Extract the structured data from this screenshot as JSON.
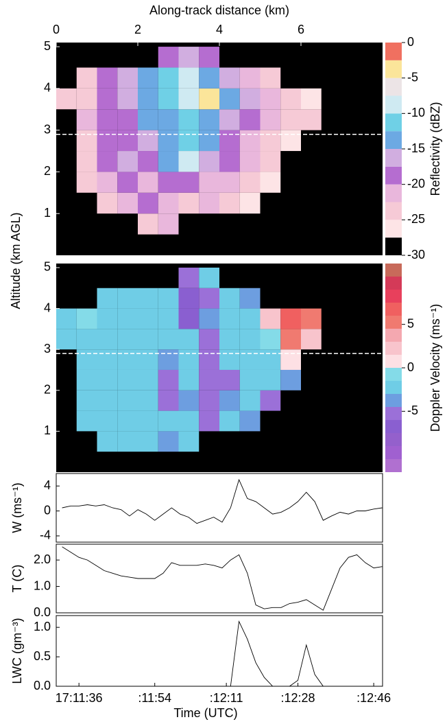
{
  "chart_data": [
    {
      "type": "heatmap",
      "xlabel": "Along-track distance (km)",
      "ylabel": "Altitude (km AGL)",
      "colorbar_label": "Reflectivity (dBZ)",
      "xlim": [
        0,
        8
      ],
      "xticks": [
        0,
        2,
        4,
        6
      ],
      "ylim": [
        0,
        5.1
      ],
      "yticks": [
        1,
        2,
        3,
        4,
        5
      ],
      "x_bins": [
        0,
        0.5,
        1,
        1.5,
        2,
        2.5,
        3,
        3.5,
        4,
        4.5,
        5,
        5.5,
        6,
        6.5,
        7,
        7.5,
        8
      ],
      "y_bins": [
        0,
        0.5,
        1,
        1.5,
        2,
        2.5,
        3,
        3.5,
        4,
        4.5,
        5
      ],
      "z": [
        [
          null,
          null,
          null,
          null,
          null,
          null,
          null,
          null,
          null,
          null,
          null,
          null,
          null,
          null,
          null,
          null
        ],
        [
          null,
          null,
          null,
          null,
          -24,
          -21,
          null,
          null,
          null,
          null,
          null,
          null,
          null,
          null,
          null,
          null
        ],
        [
          null,
          null,
          -25,
          -22,
          -20,
          -22,
          -24,
          -21,
          -23,
          -26,
          null,
          null,
          null,
          null,
          null,
          null
        ],
        [
          null,
          -25,
          -21,
          -19,
          -22,
          -20,
          -18,
          -21,
          -22,
          -24,
          -26,
          null,
          null,
          null,
          null,
          null
        ],
        [
          null,
          -25,
          -20,
          -17,
          -19,
          -15,
          -10,
          -17,
          -20,
          -22,
          -25,
          null,
          null,
          null,
          null,
          null
        ],
        [
          null,
          -23,
          -19,
          -20,
          -17,
          -14,
          -12,
          -15,
          -19,
          -21,
          -24,
          -27,
          null,
          null,
          null,
          null
        ],
        [
          null,
          -22,
          -19,
          -18,
          -15,
          -13,
          -12,
          -14,
          -16,
          -18,
          -21,
          -23,
          -25,
          null,
          null,
          null
        ],
        [
          -25,
          -23,
          -20,
          -16,
          -14,
          -12,
          -8,
          -4,
          -13,
          -17,
          -22,
          -24,
          -26,
          null,
          null,
          null
        ],
        [
          null,
          -24,
          -18,
          -16,
          -15,
          -11,
          -9,
          -13,
          -17,
          -22,
          -25,
          null,
          null,
          null,
          null,
          null
        ],
        [
          null,
          null,
          null,
          null,
          null,
          -18,
          -16,
          -20,
          null,
          null,
          null,
          null,
          null,
          null,
          null,
          null
        ]
      ],
      "levels": [
        -30,
        -27.5,
        -25,
        -22.5,
        -20,
        -17.5,
        -15,
        -12.5,
        -10,
        -7.5,
        -5,
        -2.5,
        0
      ],
      "colors": [
        "#000000",
        "#fde4e6",
        "#f6cad6",
        "#e9b7dc",
        "#b56dd0",
        "#d1aee0",
        "#6ca9e3",
        "#6fd0e6",
        "#cfeaf2",
        "#ece4e6",
        "#fbe59a",
        "#f07060"
      ],
      "cticks": [
        -30,
        -25,
        -20,
        -15,
        -10,
        -5,
        0
      ],
      "flight_altitude": 2.9
    },
    {
      "type": "heatmap",
      "colorbar_label": "Doppler Velocity (ms⁻¹)",
      "xlim": [
        0,
        8
      ],
      "ylim": [
        0,
        5.1
      ],
      "yticks": [
        1,
        2,
        3,
        4,
        5
      ],
      "x_bins": [
        0,
        0.5,
        1,
        1.5,
        2,
        2.5,
        3,
        3.5,
        4,
        4.5,
        5,
        5.5,
        6,
        6.5,
        7,
        7.5,
        8
      ],
      "y_bins": [
        0,
        0.5,
        1,
        1.5,
        2,
        2.5,
        3,
        3.5,
        4,
        4.5,
        5
      ],
      "z": [
        [
          null,
          null,
          null,
          null,
          null,
          null,
          null,
          null,
          null,
          null,
          null,
          null,
          null,
          null,
          null,
          null
        ],
        [
          null,
          null,
          -3,
          -2,
          -2,
          -4,
          -3,
          null,
          null,
          null,
          null,
          null,
          null,
          null,
          null,
          null
        ],
        [
          null,
          -2,
          -2,
          -2,
          -3,
          -2,
          -3,
          -5,
          -3,
          -4,
          null,
          null,
          null,
          null,
          null,
          null
        ],
        [
          null,
          -2,
          -2,
          -2,
          -3,
          -5,
          -4,
          -6,
          -4,
          -3,
          -5,
          null,
          null,
          null,
          null,
          null
        ],
        [
          null,
          -2,
          -2,
          -2,
          -3,
          -5,
          -3,
          -5,
          -6,
          -3,
          -2,
          -4,
          null,
          null,
          null,
          null
        ],
        [
          null,
          -2,
          -2,
          -2,
          -3,
          -4,
          -3,
          -5,
          -3,
          -2,
          -3,
          1,
          null,
          null,
          null,
          null
        ],
        [
          -2,
          -2,
          -2,
          -2,
          -3,
          -2,
          -3,
          -5,
          -2,
          -2,
          -1,
          5,
          2,
          null,
          null,
          null
        ],
        [
          -2,
          -1,
          -2,
          -2,
          -3,
          -2,
          -7,
          -4,
          -2,
          -2,
          2,
          6,
          5,
          null,
          null,
          null
        ],
        [
          null,
          null,
          -2,
          -2,
          -3,
          -2,
          -7,
          -5,
          -3,
          -4,
          null,
          null,
          null,
          null,
          null,
          null
        ],
        [
          null,
          null,
          null,
          null,
          null,
          null,
          -6,
          -3,
          null,
          null,
          null,
          null,
          null,
          null,
          null,
          null
        ]
      ],
      "levels": [
        -12,
        -10.5,
        -9,
        -7.5,
        -6,
        -4.5,
        -3,
        -1.5,
        0,
        1.5,
        3,
        4.5,
        6,
        7.5,
        9,
        10.5,
        12
      ],
      "colors": [
        "#b070d0",
        "#a060d0",
        "#9460cc",
        "#8a5fd0",
        "#9b70d8",
        "#6d9ee0",
        "#6fcde6",
        "#84dbe8",
        "#fde0e4",
        "#f8c4cc",
        "#f4a8b0",
        "#f07a70",
        "#f06060",
        "#e8405c",
        "#d43a58",
        "#c86a5a"
      ],
      "cticks": [
        -5,
        0,
        5
      ],
      "flight_altitude": 2.9
    },
    {
      "type": "line",
      "ylabel": "W (ms⁻¹)",
      "xlim": [
        30.6,
        108.1
      ],
      "ylim": [
        -5,
        6
      ],
      "yticks": [
        -4,
        0,
        4
      ],
      "color": "#000000",
      "x": [
        32,
        34,
        36,
        38,
        40,
        42,
        44,
        46,
        48,
        50,
        52,
        54,
        56,
        58,
        60,
        62,
        64,
        66,
        68,
        70,
        72,
        74,
        76,
        78,
        80,
        82,
        84,
        86,
        88,
        90,
        92,
        94,
        96,
        98,
        100,
        102,
        104,
        106,
        108
      ],
      "values": [
        0.5,
        0.8,
        0.8,
        1.0,
        0.8,
        1.0,
        0.5,
        0.2,
        -0.8,
        0.2,
        -0.5,
        -1.5,
        -0.5,
        0.5,
        -0.5,
        -1.0,
        -2.0,
        -1.5,
        -1.0,
        -1.8,
        0.5,
        5.0,
        2.0,
        1.5,
        0.5,
        -0.5,
        -0.2,
        0.5,
        1.5,
        3.0,
        1.5,
        -1.5,
        -0.8,
        -0.2,
        -0.5,
        0.0,
        0.0,
        0.3,
        0.5
      ]
    },
    {
      "type": "line",
      "ylabel": "T (C)",
      "xlim": [
        30.6,
        108.1
      ],
      "ylim": [
        0,
        2.6
      ],
      "yticks": [
        {
          "value": 0,
          "label": "0.0"
        },
        {
          "value": 1,
          "label": "1.0"
        },
        {
          "value": 2,
          "label": "2.0"
        }
      ],
      "color": "#000000",
      "x": [
        32,
        34,
        36,
        38,
        40,
        42,
        44,
        46,
        48,
        50,
        52,
        54,
        56,
        58,
        60,
        62,
        64,
        66,
        68,
        70,
        72,
        74,
        76,
        78,
        80,
        82,
        84,
        86,
        88,
        90,
        92,
        94,
        96,
        98,
        100,
        102,
        104,
        106,
        108
      ],
      "values": [
        2.5,
        2.3,
        2.1,
        2.0,
        1.8,
        1.6,
        1.5,
        1.4,
        1.35,
        1.3,
        1.3,
        1.3,
        1.5,
        1.9,
        1.8,
        1.8,
        1.8,
        1.85,
        1.8,
        1.7,
        2.0,
        2.2,
        1.5,
        0.3,
        0.15,
        0.2,
        0.2,
        0.35,
        0.4,
        0.5,
        0.3,
        0.1,
        0.9,
        1.7,
        2.1,
        2.2,
        1.9,
        1.7,
        1.75
      ]
    },
    {
      "type": "line",
      "ylabel": "LWC (gm⁻³)",
      "xlabel": "Time (UTC)",
      "xlim": [
        30.6,
        108.1
      ],
      "ylim": [
        0,
        1.2
      ],
      "yticks": [
        {
          "value": 0,
          "label": "0.0"
        },
        {
          "value": 0.5,
          "label": "0.5"
        },
        {
          "value": 1,
          "label": "1.0"
        }
      ],
      "color": "#000000",
      "xticks": [
        {
          "value": 36,
          "label": "17:11:36"
        },
        {
          "value": 54,
          "label": ":11:54"
        },
        {
          "value": 71,
          "label": ":12:11"
        },
        {
          "value": 88,
          "label": ":12:28"
        },
        {
          "value": 106,
          "label": ":12:46"
        }
      ],
      "x": [
        32,
        34,
        36,
        38,
        40,
        42,
        44,
        46,
        48,
        50,
        52,
        54,
        56,
        58,
        60,
        62,
        64,
        66,
        68,
        70,
        72,
        74,
        76,
        78,
        80,
        82,
        84,
        86,
        88,
        90,
        92,
        94,
        96,
        98,
        100,
        102,
        104,
        106,
        108
      ],
      "values": [
        0,
        0,
        0,
        0,
        0,
        0,
        0,
        0,
        0,
        0,
        0,
        0,
        0,
        0,
        0,
        0,
        0,
        0,
        0,
        0,
        0,
        1.1,
        0.8,
        0.4,
        0.15,
        0,
        0,
        0,
        0.1,
        0.7,
        0.2,
        0,
        0,
        0,
        0,
        0,
        0,
        0,
        0
      ]
    }
  ]
}
